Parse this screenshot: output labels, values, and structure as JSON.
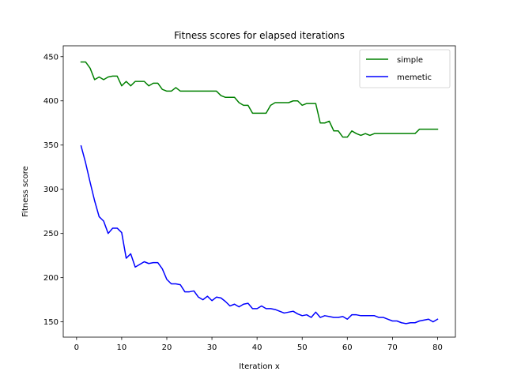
{
  "chart_data": {
    "type": "line",
    "title": "Fitness scores for elapsed iterations",
    "xlabel": "Iteration x",
    "ylabel": "Fitness score",
    "xlim": [
      -2.95,
      83.95
    ],
    "ylim": [
      132.7,
      462.3
    ],
    "xticks": [
      0,
      10,
      20,
      30,
      40,
      50,
      60,
      70,
      80
    ],
    "yticks": [
      150,
      200,
      250,
      300,
      350,
      400,
      450
    ],
    "grid": false,
    "legend_position": "upper right",
    "x": [
      1,
      2,
      3,
      4,
      5,
      6,
      7,
      8,
      9,
      10,
      11,
      12,
      13,
      14,
      15,
      16,
      17,
      18,
      19,
      20,
      21,
      22,
      23,
      24,
      25,
      26,
      27,
      28,
      29,
      30,
      31,
      32,
      33,
      34,
      35,
      36,
      37,
      38,
      39,
      40,
      41,
      42,
      43,
      44,
      45,
      46,
      47,
      48,
      49,
      50,
      51,
      52,
      53,
      54,
      55,
      56,
      57,
      58,
      59,
      60,
      61,
      62,
      63,
      64,
      65,
      66,
      67,
      68,
      69,
      70,
      71,
      72,
      73,
      74,
      75,
      76,
      77,
      78,
      79,
      80
    ],
    "series": [
      {
        "name": "simple",
        "color": "#008000",
        "values": [
          444,
          444,
          437,
          424,
          427,
          424,
          427,
          428,
          428,
          417,
          422,
          417,
          422,
          422,
          422,
          417,
          420,
          420,
          413,
          411,
          411,
          415,
          411,
          411,
          411,
          411,
          411,
          411,
          411,
          411,
          411,
          406,
          404,
          404,
          404,
          398,
          395,
          395,
          386,
          386,
          386,
          386,
          395,
          398,
          398,
          398,
          398,
          400,
          400,
          395,
          397,
          397,
          397,
          375,
          375,
          377,
          366,
          366,
          359,
          359,
          366,
          363,
          361,
          363,
          361,
          363,
          363,
          363,
          363,
          363,
          363,
          363,
          363,
          363,
          363,
          368,
          368,
          368,
          368,
          368
        ]
      },
      {
        "name": "memetic",
        "color": "#0000ff",
        "values": [
          349,
          330,
          308,
          287,
          269,
          264,
          250,
          256,
          256,
          251,
          222,
          227,
          212,
          215,
          218,
          216,
          217,
          217,
          210,
          198,
          193,
          193,
          192,
          184,
          184,
          185,
          178,
          175,
          179,
          174,
          178,
          177,
          173,
          168,
          170,
          167,
          170,
          171,
          165,
          165,
          168,
          165,
          165,
          164,
          162,
          160,
          161,
          162,
          159,
          157,
          158,
          155,
          161,
          155,
          157,
          156,
          155,
          155,
          156,
          153,
          158,
          158,
          157,
          157,
          157,
          157,
          155,
          155,
          153,
          151,
          151,
          149,
          148,
          149,
          149,
          151,
          152,
          153,
          150,
          153
        ]
      }
    ]
  }
}
